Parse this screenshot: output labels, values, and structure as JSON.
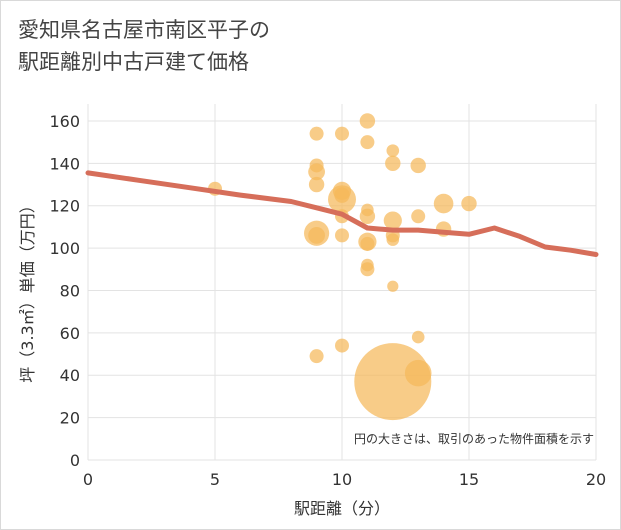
{
  "chart_data": {
    "type": "scatter",
    "title_line1": "愛知県名古屋市南区平子の",
    "title_line2": "駅距離別中古戸建て価格",
    "xlabel": "駅距離（分）",
    "ylabel": "坪（3.3㎡）単価（万円）",
    "note": "円の大きさは、取引のあった物件面積を示す",
    "xlim": [
      0,
      20
    ],
    "ylim": [
      0,
      168
    ],
    "x_ticks": [
      "0",
      "5",
      "10",
      "15",
      "20"
    ],
    "y_ticks": [
      "0",
      "20",
      "40",
      "60",
      "80",
      "100",
      "120",
      "140",
      "160"
    ],
    "grid": true,
    "colors": {
      "bubble": "#f5b95a",
      "line": "#d66e5a",
      "grid": "#e3e3e3"
    },
    "points": [
      {
        "x": 5,
        "y": 128,
        "s": 1
      },
      {
        "x": 9,
        "y": 154,
        "s": 1
      },
      {
        "x": 9,
        "y": 139,
        "s": 1
      },
      {
        "x": 9,
        "y": 136,
        "s": 1.2
      },
      {
        "x": 9,
        "y": 130,
        "s": 1.1
      },
      {
        "x": 9,
        "y": 107,
        "s": 1.8
      },
      {
        "x": 9,
        "y": 106,
        "s": 1.2
      },
      {
        "x": 9,
        "y": 49,
        "s": 1
      },
      {
        "x": 10,
        "y": 154,
        "s": 1
      },
      {
        "x": 10,
        "y": 127,
        "s": 1.3
      },
      {
        "x": 10,
        "y": 125,
        "s": 1.1
      },
      {
        "x": 10,
        "y": 123,
        "s": 2.0
      },
      {
        "x": 10,
        "y": 115,
        "s": 1
      },
      {
        "x": 10,
        "y": 106,
        "s": 1
      },
      {
        "x": 10,
        "y": 54,
        "s": 1
      },
      {
        "x": 11,
        "y": 160,
        "s": 1.1
      },
      {
        "x": 11,
        "y": 150,
        "s": 1
      },
      {
        "x": 11,
        "y": 118,
        "s": 0.9
      },
      {
        "x": 11,
        "y": 115,
        "s": 1.1
      },
      {
        "x": 11,
        "y": 103,
        "s": 1.3
      },
      {
        "x": 11,
        "y": 102,
        "s": 1
      },
      {
        "x": 11,
        "y": 92,
        "s": 0.9
      },
      {
        "x": 11,
        "y": 90,
        "s": 1
      },
      {
        "x": 12,
        "y": 146,
        "s": 0.9
      },
      {
        "x": 12,
        "y": 140,
        "s": 1.1
      },
      {
        "x": 12,
        "y": 113,
        "s": 1.3
      },
      {
        "x": 12,
        "y": 106,
        "s": 1
      },
      {
        "x": 12,
        "y": 104,
        "s": 0.9
      },
      {
        "x": 12,
        "y": 82,
        "s": 0.8
      },
      {
        "x": 12,
        "y": 37,
        "s": 5.5
      },
      {
        "x": 13,
        "y": 139,
        "s": 1.1
      },
      {
        "x": 13,
        "y": 115,
        "s": 1
      },
      {
        "x": 13,
        "y": 58,
        "s": 0.9
      },
      {
        "x": 13,
        "y": 41,
        "s": 1.9
      },
      {
        "x": 14,
        "y": 121,
        "s": 1.4
      },
      {
        "x": 14,
        "y": 109,
        "s": 1.1
      },
      {
        "x": 15,
        "y": 121,
        "s": 1.1
      }
    ],
    "trend": {
      "x": [
        0,
        2,
        4,
        6,
        8,
        9,
        10,
        11,
        12,
        13,
        14,
        15,
        16,
        17,
        18,
        19,
        20
      ],
      "y": [
        135.5,
        132,
        128.5,
        125,
        122,
        119,
        116,
        109.5,
        108.5,
        108.5,
        107.5,
        106.5,
        109.5,
        105.5,
        100.5,
        99,
        97
      ]
    }
  }
}
